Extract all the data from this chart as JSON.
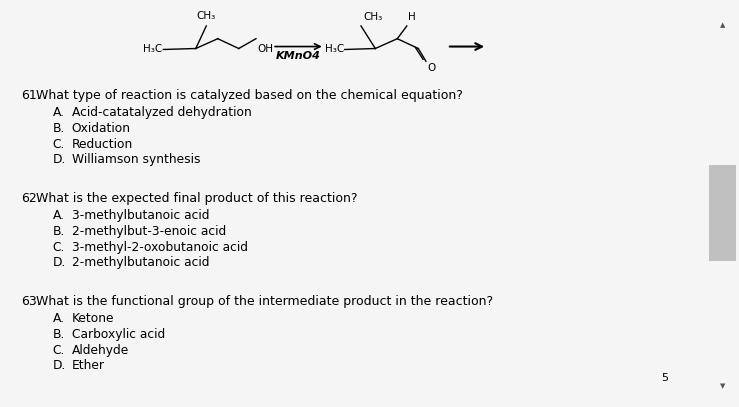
{
  "bg_color": "#f5f5f5",
  "content_bg": "#ffffff",
  "arrow_label": "KMnO4",
  "questions": [
    {
      "number": "61.",
      "question": "What type of reaction is catalyzed based on the chemical equation?",
      "choices": [
        [
          "A.",
          "Acid-catatalyzed dehydration"
        ],
        [
          "B.",
          "Oxidation"
        ],
        [
          "C.",
          "Reduction"
        ],
        [
          "D.",
          "Williamson synthesis"
        ]
      ]
    },
    {
      "number": "62.",
      "question": "What is the expected final product of this reaction?",
      "choices": [
        [
          "A.",
          "3-methylbutanoic acid"
        ],
        [
          "B.",
          "2-methylbut-3-enoic acid"
        ],
        [
          "C.",
          "3-methyl-2-oxobutanoic acid"
        ],
        [
          "D.",
          "2-methylbutanoic acid"
        ]
      ]
    },
    {
      "number": "63.",
      "question": "What is the functional group of the intermediate product in the reaction?",
      "choices": [
        [
          "A.",
          "Ketone"
        ],
        [
          "B.",
          "Carboxylic acid"
        ],
        [
          "C.",
          "Aldehyde"
        ],
        [
          "D.",
          "Ether"
        ]
      ]
    }
  ],
  "footer_number": "5",
  "scrollbar_color": "#c0c0c0",
  "top_bar_color": "#c8e6c8",
  "bottom_bar_color": "#cc2200",
  "font_size_question": 9.0,
  "font_size_choices": 8.8,
  "font_size_chem": 7.5
}
